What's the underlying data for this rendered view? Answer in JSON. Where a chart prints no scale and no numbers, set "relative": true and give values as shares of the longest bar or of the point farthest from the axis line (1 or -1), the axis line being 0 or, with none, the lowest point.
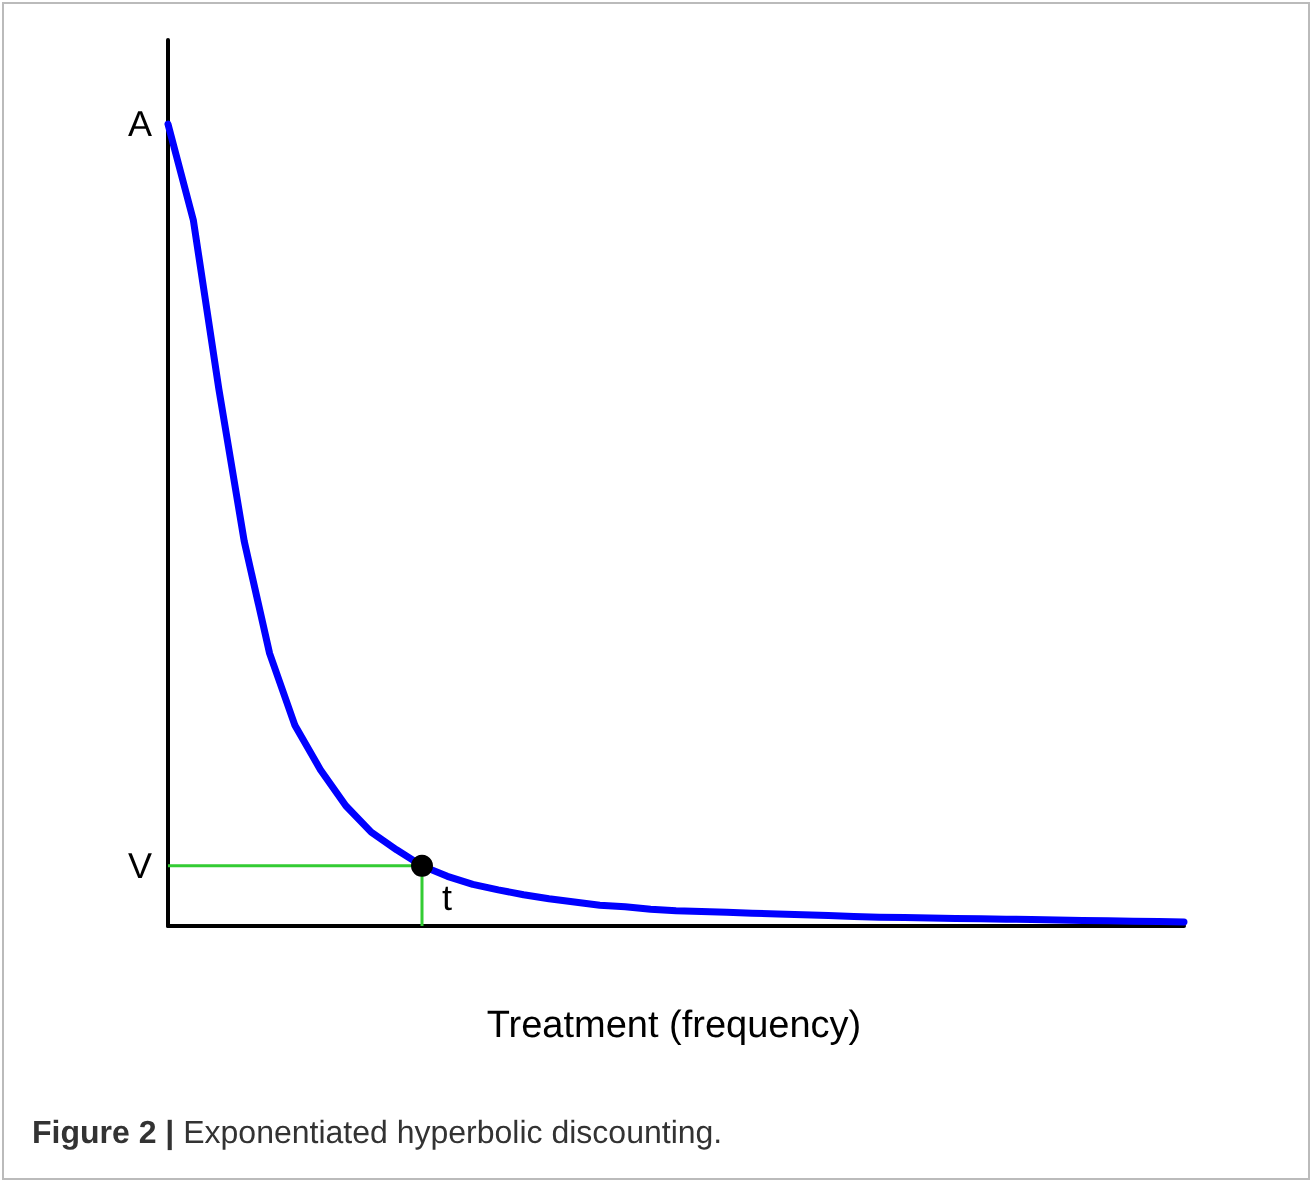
{
  "chart_data": {
    "type": "line",
    "relative": true,
    "xlabel": "Treatment (frequency)",
    "categories": [
      null,
      null,
      null,
      null,
      null,
      null,
      null,
      null,
      null,
      null,
      null,
      null,
      null,
      null,
      null,
      null,
      null,
      null,
      null,
      null,
      null,
      null,
      null,
      null,
      null,
      null,
      null,
      null,
      null,
      null,
      null,
      null,
      null,
      null,
      null,
      null,
      null,
      null,
      null,
      null,
      null
    ],
    "series": [
      {
        "color": "#0000ff",
        "values": [
          1.0,
          0.88,
          0.67,
          0.48,
          0.34,
          0.25,
          0.195,
          0.15,
          0.117,
          0.095,
          0.075,
          0.062,
          0.052,
          0.045,
          0.039,
          0.034,
          0.03,
          0.026,
          0.024,
          0.021,
          0.019,
          0.018,
          0.017,
          0.016,
          0.015,
          0.014,
          0.013,
          0.012,
          0.011,
          0.0105,
          0.01,
          0.0095,
          0.009,
          0.0085,
          0.008,
          0.0075,
          0.007,
          0.0065,
          0.006,
          0.0055,
          0.005
        ]
      }
    ],
    "ref_lines": [
      {
        "axis": "y",
        "value": 0.075,
        "label": "V",
        "color": "#33cc33"
      }
    ],
    "annotations": [
      "A",
      "t",
      "Figure 2 | Exponentiated hyperbolic discounting."
    ],
    "grid": false
  }
}
